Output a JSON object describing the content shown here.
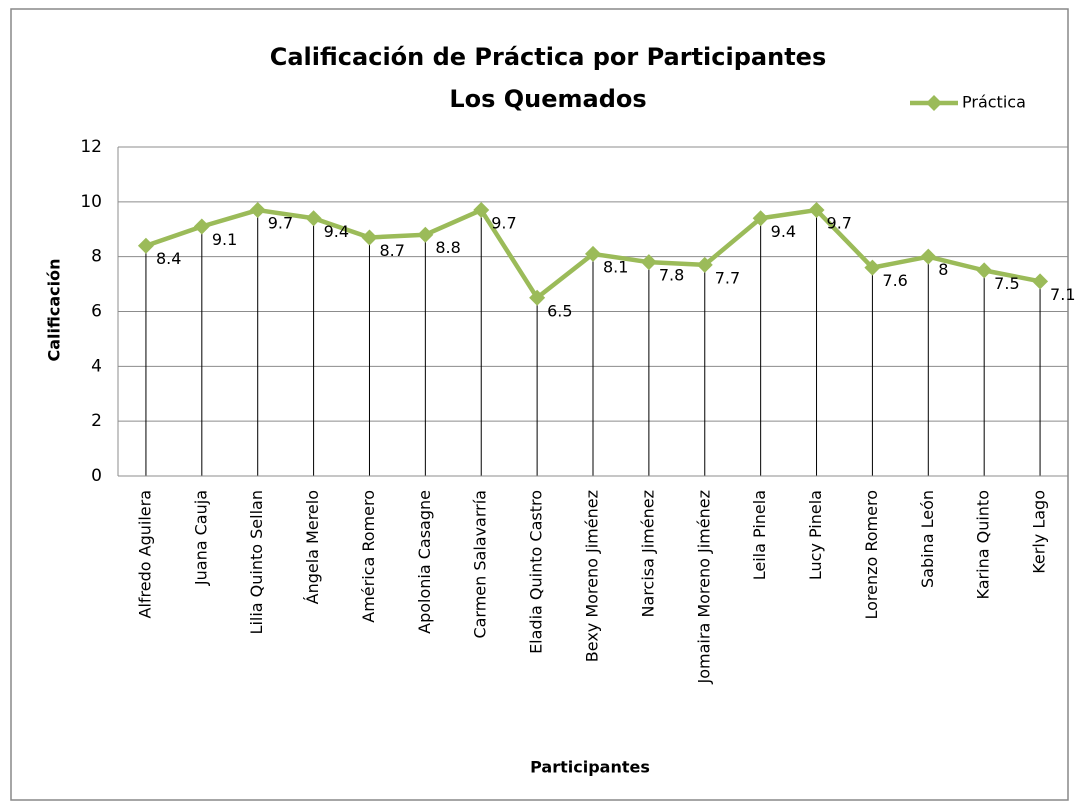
{
  "chart_data": {
    "type": "line",
    "title": "Calificación de Práctica por Participantes",
    "subtitle": "Los Quemados",
    "x_label": "Participantes",
    "y_label": "Calificación",
    "categories": [
      "Alfredo Aguilera",
      "Juana Cauja",
      "Lilia Quinto Sellan",
      "Ángela Merelo",
      "América Romero",
      "Apolonia Casagne",
      "Carmen Salavarría",
      "Eladia Quinto Castro",
      "Bexy Moreno Jiménez",
      "Narcisa Jiménez",
      "Jomaira Moreno Jiménez",
      "Leila Pinela",
      "Lucy Pinela",
      "Lorenzo Romero",
      "Sabina León",
      "Karina Quinto",
      "Kerly Lago"
    ],
    "series": [
      {
        "name": "Práctica",
        "color": "#9bbb59",
        "values": [
          8.4,
          9.1,
          9.7,
          9.4,
          8.7,
          8.8,
          9.7,
          6.5,
          8.1,
          7.8,
          7.7,
          9.4,
          9.7,
          7.6,
          8,
          7.5,
          7.1
        ]
      }
    ],
    "ylim": [
      0,
      12
    ],
    "yticks": [
      0,
      2,
      4,
      6,
      8,
      10,
      12
    ],
    "grid": true,
    "legend": "top-right"
  }
}
